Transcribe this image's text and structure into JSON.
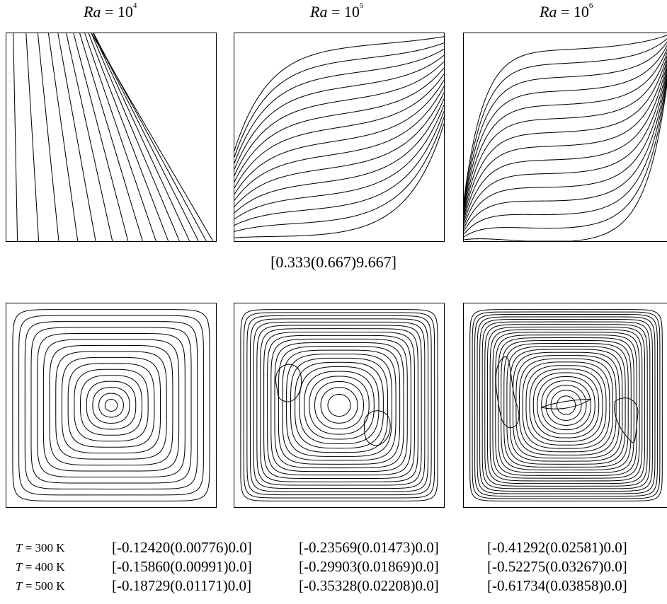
{
  "rayleigh_numbers": [
    {
      "label_prefix": "Ra",
      "eq": " = 10",
      "exponent": "4"
    },
    {
      "label_prefix": "Ra",
      "eq": " = 10",
      "exponent": "5"
    },
    {
      "label_prefix": "Ra",
      "eq": " = 10",
      "exponent": "6"
    }
  ],
  "isotherm_range": "[0.333(0.667)9.667]",
  "temperature_rows": [
    {
      "T_italic": "T",
      "label": " = 300 K",
      "ranges": [
        "[-0.12420(0.00776)0.0]",
        "[-0.23569(0.01473)0.0]",
        "[-0.41292(0.02581)0.0]"
      ]
    },
    {
      "T_italic": "T",
      "label": " = 400 K",
      "ranges": [
        "[-0.15860(0.00991)0.0]",
        "[-0.29903(0.01869)0.0]",
        "[-0.52275(0.03267)0.0]"
      ]
    },
    {
      "T_italic": "T",
      "label": " = 500 K",
      "ranges": [
        "[-0.18729(0.01171)0.0]",
        "[-0.35328(0.02208)0.0]",
        "[-0.61734(0.03858)0.0]"
      ]
    }
  ]
}
